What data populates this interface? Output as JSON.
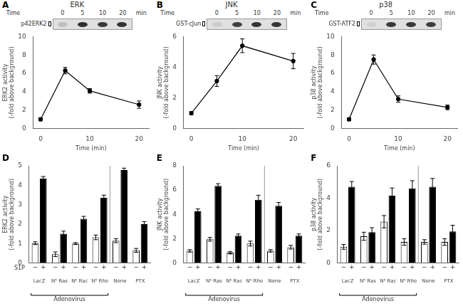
{
  "chart_data": [
    {
      "type": "line",
      "letter": "A",
      "title": "ERK",
      "xlabel": "Time (min)",
      "ylabel": "ERK2 activity\n(-fold above background)",
      "x": [
        0,
        5,
        10,
        20
      ],
      "values": [
        1.0,
        6.3,
        4.1,
        2.6
      ],
      "errors": [
        0.15,
        0.35,
        0.25,
        0.4
      ],
      "color": "#000000",
      "marker": "circle",
      "line_style": "solid",
      "xlim": [
        -1.5,
        22
      ],
      "xticks": [
        0,
        10,
        20
      ],
      "ylim": [
        0,
        10
      ],
      "yticks": [
        0,
        2,
        4,
        6,
        8,
        10
      ],
      "grid": false,
      "gel": {
        "label": "p42ERK2",
        "header": "Time",
        "time_points": [
          "0",
          "5",
          "10",
          "20"
        ],
        "unit": "min",
        "band_colors": [
          "#bfbfbf",
          "#2e2e2e",
          "#383838",
          "#333333"
        ]
      }
    },
    {
      "type": "line",
      "letter": "B",
      "title": "JNK",
      "xlabel": "Time (min)",
      "ylabel": "JNK activity\n(-fold above background)",
      "x": [
        0,
        5,
        10,
        20
      ],
      "values": [
        1.0,
        3.1,
        5.4,
        4.4
      ],
      "errors": [
        0.1,
        0.35,
        0.45,
        0.5
      ],
      "color": "#000000",
      "marker": "circle",
      "line_style": "solid",
      "xlim": [
        -1.5,
        22
      ],
      "xticks": [
        0,
        10,
        20
      ],
      "ylim": [
        0,
        6
      ],
      "yticks": [
        0,
        2,
        4,
        6
      ],
      "grid": false,
      "gel": {
        "label": "GST-cJun",
        "header": "Time",
        "time_points": [
          "0",
          "5",
          "10",
          "20"
        ],
        "unit": "min",
        "band_colors": [
          "#cccccc",
          "#404040",
          "#333333",
          "#383838"
        ]
      }
    },
    {
      "type": "line",
      "letter": "C",
      "title": "p38",
      "xlabel": "Time (min)",
      "ylabel": "p38 activity\n(-fold above background)",
      "x": [
        0,
        5,
        10,
        20
      ],
      "values": [
        1.0,
        7.5,
        3.2,
        2.3
      ],
      "errors": [
        0.15,
        0.5,
        0.35,
        0.25
      ],
      "color": "#000000",
      "marker": "circle",
      "line_style": "solid",
      "xlim": [
        -1.5,
        22
      ],
      "xticks": [
        0,
        10,
        20
      ],
      "ylim": [
        0,
        10
      ],
      "yticks": [
        0,
        2,
        4,
        6,
        8,
        10
      ],
      "grid": false,
      "gel": {
        "label": "GST-ATF2",
        "header": "Time",
        "time_points": [
          "0",
          "5",
          "10",
          "20"
        ],
        "unit": "min",
        "band_colors": [
          "#d1d1d1",
          "#383838",
          "#383838",
          "#3d3d3d"
        ]
      }
    },
    {
      "type": "bar",
      "letter": "D",
      "ylabel": "ERK2 activity\n(-fold above background)",
      "categories": [
        "LacZ",
        "Nᴷ Ras",
        "Nᴷ Rac",
        "Nᴷ Rho",
        "None",
        "PTX"
      ],
      "series": [
        {
          "name": "−",
          "color": "#ffffff",
          "values": [
            1.02,
            0.45,
            1.0,
            1.32,
            1.15,
            0.65
          ],
          "errors": [
            0.07,
            0.12,
            0.05,
            0.12,
            0.1,
            0.1
          ]
        },
        {
          "name": "+",
          "color": "#000000",
          "values": [
            4.35,
            1.5,
            2.27,
            3.35,
            4.78,
            2.0
          ],
          "errors": [
            0.1,
            0.14,
            0.13,
            0.14,
            0.1,
            0.13
          ]
        }
      ],
      "ylim": [
        0,
        5
      ],
      "yticks": [
        0,
        1,
        2,
        3,
        4,
        5
      ],
      "grid": false,
      "row_label": "S1P",
      "bracket": {
        "text": "Adenovirus",
        "from": "LacZ",
        "to": "Nᴷ Rho"
      }
    },
    {
      "type": "bar",
      "letter": "E",
      "ylabel": "JNK activity\n(-fold above background)",
      "categories": [
        "LacZ",
        "Nᴷ Ras",
        "Nᴷ Rac",
        "Nᴷ Rho",
        "None",
        "PTX"
      ],
      "series": [
        {
          "name": "−",
          "color": "#ffffff",
          "values": [
            1.0,
            1.95,
            0.85,
            1.6,
            1.0,
            1.3
          ],
          "errors": [
            0.1,
            0.15,
            0.1,
            0.2,
            0.1,
            0.15
          ]
        },
        {
          "name": "+",
          "color": "#000000",
          "values": [
            4.25,
            6.35,
            2.25,
            5.2,
            4.7,
            2.25
          ],
          "errors": [
            0.2,
            0.18,
            0.14,
            0.38,
            0.28,
            0.14
          ]
        }
      ],
      "ylim": [
        0,
        8
      ],
      "yticks": [
        0,
        2,
        4,
        6,
        8
      ],
      "grid": false,
      "bracket": {
        "text": "Adenovirus",
        "from": "LacZ",
        "to": "Nᴷ Rho"
      }
    },
    {
      "type": "bar",
      "letter": "F",
      "ylabel": "p38 activity\n(-fold above background)",
      "categories": [
        "LacZ",
        "Nᴷ Ras",
        "Nᴷ Rac",
        "Nᴷ Rho",
        "None",
        "PTX"
      ],
      "series": [
        {
          "name": "−",
          "color": "#ffffff",
          "values": [
            1.0,
            1.65,
            2.55,
            1.3,
            1.3,
            1.3
          ],
          "errors": [
            0.15,
            0.25,
            0.38,
            0.2,
            0.14,
            0.2
          ]
        },
        {
          "name": "+",
          "color": "#000000",
          "values": [
            4.7,
            1.9,
            4.15,
            4.6,
            4.7,
            1.95
          ],
          "errors": [
            0.33,
            0.28,
            0.48,
            0.48,
            0.52,
            0.38
          ]
        }
      ],
      "ylim": [
        0,
        6
      ],
      "yticks": [
        0,
        2,
        4,
        6
      ],
      "grid": false,
      "bracket": {
        "text": "Adenovirus",
        "from": "LacZ",
        "to": "Nᴷ Rho"
      }
    }
  ]
}
